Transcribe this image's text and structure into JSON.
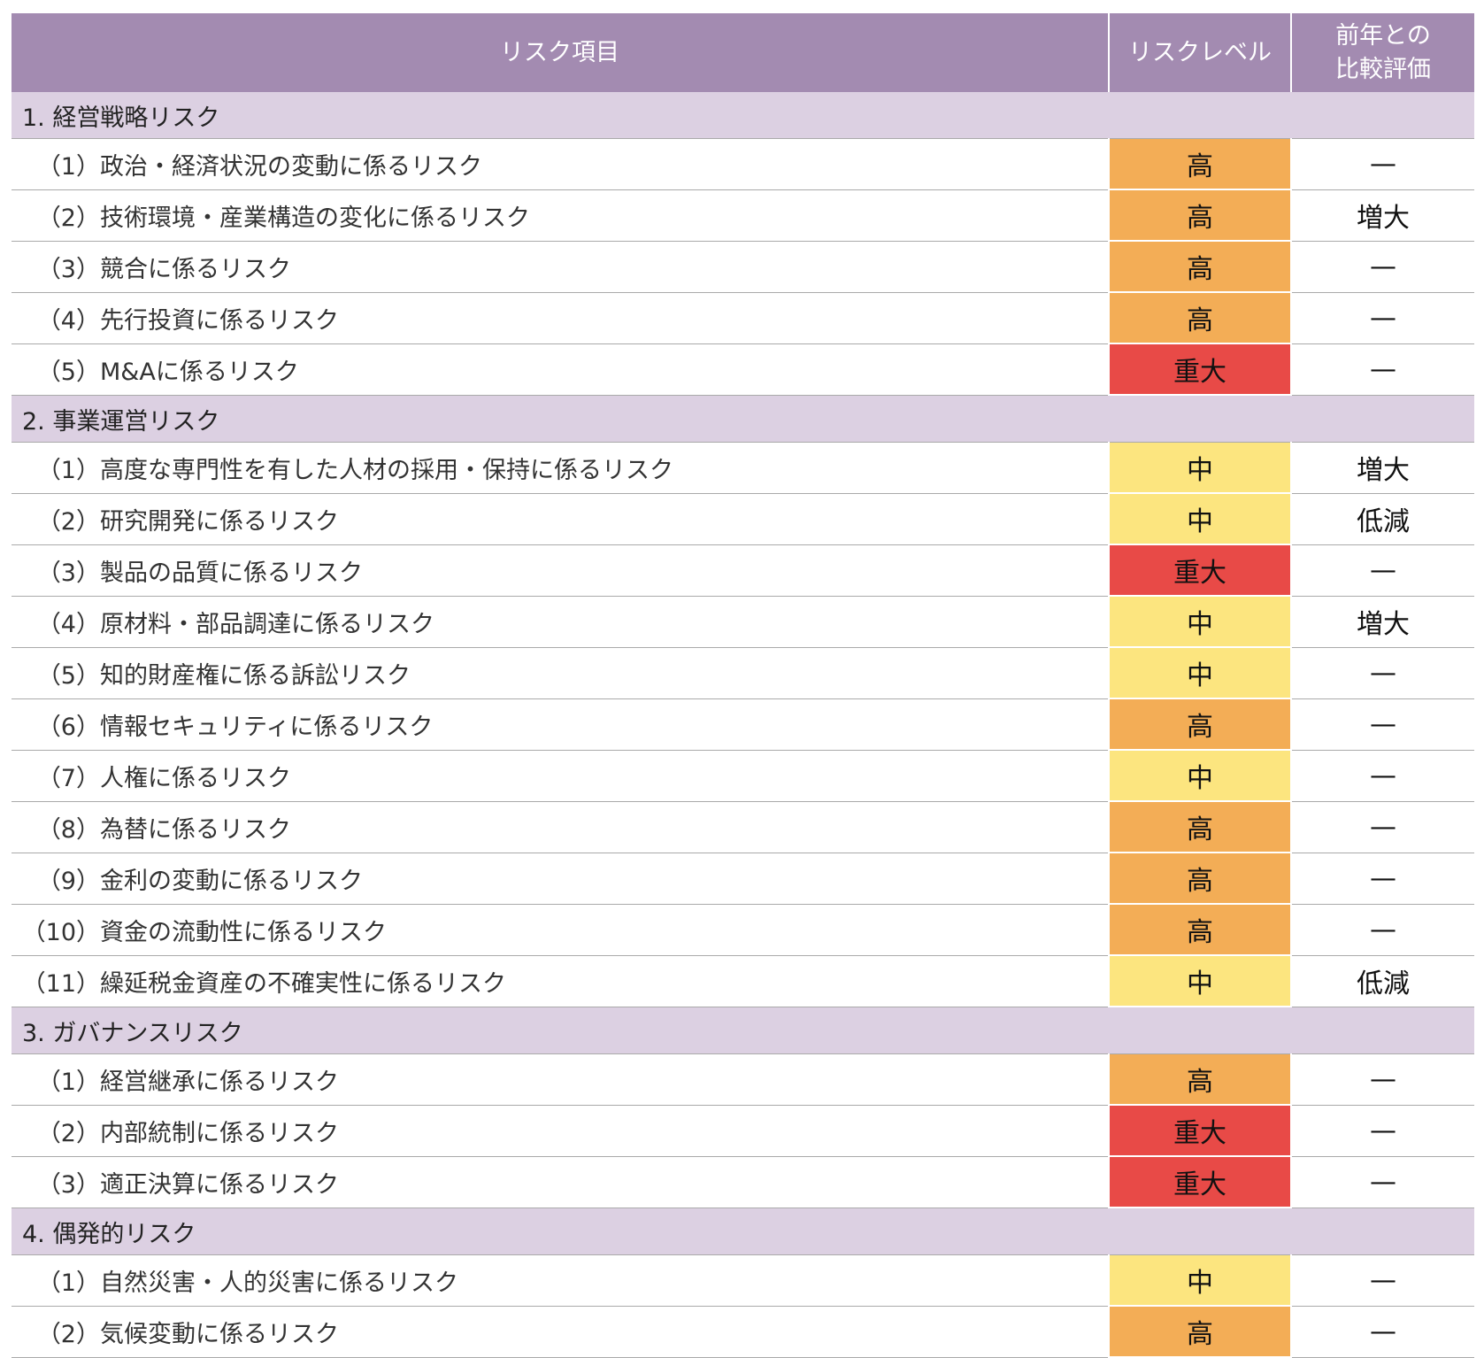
{
  "table": {
    "headers": [
      "リスク項目",
      "リスクレベル",
      "前年との\n比較評価"
    ],
    "sections": [
      {
        "title": "1. 経営戦略リスク",
        "rows": [
          {
            "num": "（1）",
            "item": "政治・経済状況の変動に係るリスク",
            "level": "高",
            "color": "#f3ad56",
            "change": "—"
          },
          {
            "num": "（2）",
            "item": "技術環境・産業構造の変化に係るリスク",
            "level": "高",
            "color": "#f3ad56",
            "change": "増大"
          },
          {
            "num": "（3）",
            "item": "競合に係るリスク",
            "level": "高",
            "color": "#f3ad56",
            "change": "—"
          },
          {
            "num": "（4）",
            "item": "先行投資に係るリスク",
            "level": "高",
            "color": "#f3ad56",
            "change": "—"
          },
          {
            "num": "（5）",
            "item": "M&Aに係るリスク",
            "level": "重大",
            "color": "#e84a47",
            "change": "—"
          }
        ]
      },
      {
        "title": "2. 事業運営リスク",
        "rows": [
          {
            "num": "（1）",
            "item": "高度な専門性を有した人材の採用・保持に係るリスク",
            "level": "中",
            "color": "#fce57f",
            "change": "増大"
          },
          {
            "num": "（2）",
            "item": "研究開発に係るリスク",
            "level": "中",
            "color": "#fce57f",
            "change": "低減"
          },
          {
            "num": "（3）",
            "item": "製品の品質に係るリスク",
            "level": "重大",
            "color": "#e84a47",
            "change": "—"
          },
          {
            "num": "（4）",
            "item": "原材料・部品調達に係るリスク",
            "level": "中",
            "color": "#fce57f",
            "change": "増大"
          },
          {
            "num": "（5）",
            "item": "知的財産権に係る訴訟リスク",
            "level": "中",
            "color": "#fce57f",
            "change": "—"
          },
          {
            "num": "（6）",
            "item": "情報セキュリティに係るリスク",
            "level": "高",
            "color": "#f3ad56",
            "change": "—"
          },
          {
            "num": "（7）",
            "item": "人権に係るリスク",
            "level": "中",
            "color": "#fce57f",
            "change": "—"
          },
          {
            "num": "（8）",
            "item": "為替に係るリスク",
            "level": "高",
            "color": "#f3ad56",
            "change": "—"
          },
          {
            "num": "（9）",
            "item": "金利の変動に係るリスク",
            "level": "高",
            "color": "#f3ad56",
            "change": "—"
          },
          {
            "num": "（10）",
            "item": "資金の流動性に係るリスク",
            "level": "高",
            "color": "#f3ad56",
            "change": "—"
          },
          {
            "num": "（11）",
            "item": "繰延税金資産の不確実性に係るリスク",
            "level": "中",
            "color": "#fce57f",
            "change": "低減"
          }
        ]
      },
      {
        "title": "3. ガバナンスリスク",
        "rows": [
          {
            "num": "（1）",
            "item": "経営継承に係るリスク",
            "level": "高",
            "color": "#f3ad56",
            "change": "—"
          },
          {
            "num": "（2）",
            "item": "内部統制に係るリスク",
            "level": "重大",
            "color": "#e84a47",
            "change": "—"
          },
          {
            "num": "（3）",
            "item": "適正決算に係るリスク",
            "level": "重大",
            "color": "#e84a47",
            "change": "—"
          }
        ]
      },
      {
        "title": "4. 偶発的リスク",
        "rows": [
          {
            "num": "（1）",
            "item": "自然災害・人的災害に係るリスク",
            "level": "中",
            "color": "#fce57f",
            "change": "—"
          },
          {
            "num": "（2）",
            "item": "気候変動に係るリスク",
            "level": "高",
            "color": "#f3ad56",
            "change": "—"
          }
        ]
      }
    ]
  }
}
